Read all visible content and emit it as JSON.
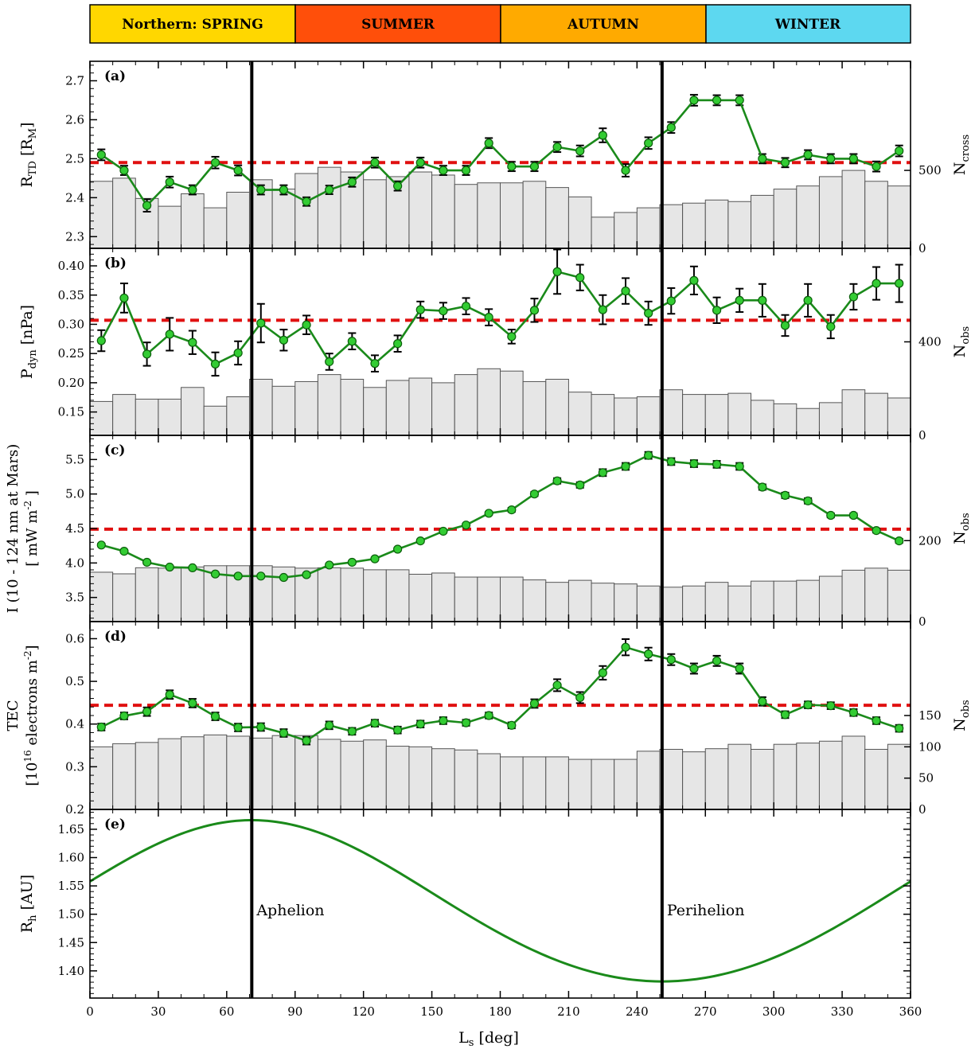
{
  "seasons": [
    {
      "label": "Northern: SPRING",
      "color": "#ffd700"
    },
    {
      "label": "SUMMER",
      "color": "#ff4f0a"
    },
    {
      "label": "AUTUMN",
      "color": "#ffaa00"
    },
    {
      "label": "WINTER",
      "color": "#5dd8f0"
    }
  ],
  "colors": {
    "line": "#1a8a1a",
    "marker": "#33cc33",
    "mean_line": "#e01010",
    "hist_fill": "#e6e6e6",
    "hist_edge": "#555555"
  },
  "xaxis": {
    "label": "L",
    "label_sub": "s",
    "label_tail": " [deg]",
    "ticks": [
      0,
      30,
      60,
      90,
      120,
      150,
      180,
      210,
      240,
      270,
      300,
      330,
      360
    ],
    "range": [
      0,
      360
    ]
  },
  "events": [
    {
      "label": "Aphelion",
      "ls": 71
    },
    {
      "label": "Perihelion",
      "ls": 251
    }
  ],
  "chart_data": [
    {
      "type": "line",
      "panel": "(a)",
      "ylabel": {
        "main": "R",
        "sub": "TD",
        "tail": " [R",
        "unit_sub": "M",
        "end": "]"
      },
      "ylim": [
        2.27,
        2.75
      ],
      "yticks": [
        2.3,
        2.4,
        2.5,
        2.6,
        2.7
      ],
      "mean": 2.49,
      "series": {
        "x": [
          5,
          15,
          25,
          35,
          45,
          55,
          65,
          75,
          85,
          95,
          105,
          115,
          125,
          135,
          145,
          155,
          165,
          175,
          185,
          195,
          205,
          215,
          225,
          235,
          245,
          255,
          265,
          275,
          285,
          295,
          305,
          315,
          325,
          335,
          345,
          355
        ],
        "y": [
          2.51,
          2.47,
          2.38,
          2.44,
          2.42,
          2.49,
          2.47,
          2.42,
          2.42,
          2.39,
          2.42,
          2.44,
          2.49,
          2.43,
          2.49,
          2.47,
          2.47,
          2.54,
          2.48,
          2.48,
          2.53,
          2.52,
          2.56,
          2.47,
          2.54,
          2.58,
          2.65,
          2.65,
          2.65,
          2.5,
          2.49,
          2.51,
          2.5,
          2.5,
          2.48,
          2.52
        ],
        "err": [
          0.014,
          0.012,
          0.016,
          0.014,
          0.012,
          0.015,
          0.013,
          0.012,
          0.012,
          0.011,
          0.011,
          0.012,
          0.013,
          0.012,
          0.013,
          0.012,
          0.012,
          0.013,
          0.012,
          0.012,
          0.013,
          0.014,
          0.018,
          0.016,
          0.015,
          0.014,
          0.014,
          0.013,
          0.013,
          0.012,
          0.012,
          0.012,
          0.012,
          0.012,
          0.013,
          0.014
        ]
      },
      "hist": {
        "ylabel": {
          "main": "N",
          "sub": "cross"
        },
        "ylim": [
          0,
          1200
        ],
        "yticks": [
          0,
          500
        ],
        "counts": [
          430,
          450,
          320,
          270,
          350,
          260,
          360,
          440,
          380,
          480,
          520,
          490,
          440,
          460,
          490,
          470,
          410,
          420,
          420,
          430,
          390,
          330,
          200,
          230,
          260,
          280,
          290,
          310,
          300,
          340,
          380,
          400,
          460,
          500,
          430,
          400
        ]
      }
    },
    {
      "type": "line",
      "panel": "(b)",
      "ylabel": {
        "main": "P",
        "sub": "dyn",
        "tail": " [nPa]",
        "unit_sub": "",
        "end": ""
      },
      "ylim": [
        0.11,
        0.43
      ],
      "yticks": [
        0.15,
        0.2,
        0.25,
        0.3,
        0.35,
        0.4
      ],
      "mean": 0.307,
      "series": {
        "x": [
          5,
          15,
          25,
          35,
          45,
          55,
          65,
          75,
          85,
          95,
          105,
          115,
          125,
          135,
          145,
          155,
          165,
          175,
          185,
          195,
          205,
          215,
          225,
          235,
          245,
          255,
          265,
          275,
          285,
          295,
          305,
          315,
          325,
          335,
          345,
          355
        ],
        "y": [
          0.272,
          0.345,
          0.249,
          0.283,
          0.269,
          0.232,
          0.251,
          0.302,
          0.273,
          0.299,
          0.236,
          0.271,
          0.233,
          0.267,
          0.325,
          0.323,
          0.331,
          0.312,
          0.279,
          0.324,
          0.39,
          0.38,
          0.325,
          0.357,
          0.319,
          0.34,
          0.375,
          0.324,
          0.341,
          0.341,
          0.298,
          0.341,
          0.296,
          0.347,
          0.37,
          0.37
        ],
        "err": [
          0.018,
          0.025,
          0.02,
          0.028,
          0.02,
          0.02,
          0.02,
          0.033,
          0.018,
          0.016,
          0.014,
          0.014,
          0.014,
          0.014,
          0.014,
          0.014,
          0.014,
          0.014,
          0.012,
          0.02,
          0.038,
          0.022,
          0.025,
          0.022,
          0.02,
          0.022,
          0.024,
          0.022,
          0.02,
          0.028,
          0.018,
          0.028,
          0.02,
          0.022,
          0.028,
          0.032
        ]
      },
      "hist": {
        "ylabel": {
          "main": "N",
          "sub": "obs"
        },
        "ylim": [
          0,
          800
        ],
        "yticks": [
          0,
          400
        ],
        "counts": [
          145,
          175,
          155,
          155,
          205,
          125,
          165,
          240,
          210,
          230,
          260,
          240,
          205,
          235,
          245,
          225,
          260,
          285,
          275,
          230,
          240,
          185,
          175,
          160,
          165,
          195,
          175,
          175,
          180,
          150,
          135,
          115,
          140,
          195,
          180,
          160
        ]
      }
    },
    {
      "type": "line",
      "panel": "(c)",
      "ylabel": {
        "main": "I (10 - 124 nm at Mars)",
        "line2": "[ mW m",
        "line2_sup": "-2",
        "line2_end": " ]"
      },
      "ylim": [
        3.15,
        5.85
      ],
      "yticks": [
        3.5,
        4.0,
        4.5,
        5.0,
        5.5
      ],
      "mean": 4.49,
      "series": {
        "x": [
          5,
          15,
          25,
          35,
          45,
          55,
          65,
          75,
          85,
          95,
          105,
          115,
          125,
          135,
          145,
          155,
          165,
          175,
          185,
          195,
          205,
          215,
          225,
          235,
          245,
          255,
          265,
          275,
          285,
          295,
          305,
          315,
          325,
          335,
          345,
          355
        ],
        "y": [
          4.26,
          4.17,
          4.01,
          3.94,
          3.93,
          3.84,
          3.81,
          3.81,
          3.79,
          3.83,
          3.97,
          4.01,
          4.06,
          4.2,
          4.32,
          4.46,
          4.55,
          4.72,
          4.77,
          5.0,
          5.19,
          5.13,
          5.31,
          5.4,
          5.56,
          5.47,
          5.44,
          5.43,
          5.4,
          5.1,
          4.98,
          4.9,
          4.69,
          4.69,
          4.47,
          4.32
        ],
        "err": [
          0.02,
          0.02,
          0.02,
          0.02,
          0.02,
          0.02,
          0.02,
          0.02,
          0.02,
          0.02,
          0.02,
          0.02,
          0.02,
          0.02,
          0.02,
          0.02,
          0.02,
          0.02,
          0.03,
          0.03,
          0.04,
          0.04,
          0.05,
          0.05,
          0.05,
          0.05,
          0.05,
          0.05,
          0.05,
          0.04,
          0.04,
          0.04,
          0.03,
          0.03,
          0.03,
          0.03
        ]
      },
      "hist": {
        "ylabel": {
          "main": "N",
          "sub": "obs"
        },
        "ylim": [
          0,
          460
        ],
        "yticks": [
          0,
          200
        ],
        "counts": [
          122,
          118,
          133,
          132,
          135,
          138,
          138,
          138,
          135,
          132,
          133,
          132,
          128,
          128,
          117,
          120,
          110,
          110,
          110,
          103,
          97,
          102,
          95,
          93,
          88,
          85,
          88,
          97,
          88,
          100,
          100,
          102,
          112,
          127,
          132,
          127
        ]
      }
    },
    {
      "type": "line",
      "panel": "(d)",
      "ylabel": {
        "main": "TEC",
        "line2": "[10",
        "line2_sup": "16",
        "line2_end": " electrons m",
        "line2_sup2": "-2",
        "line2_close": "]"
      },
      "ylim": [
        0.2,
        0.64
      ],
      "yticks": [
        0.2,
        0.3,
        0.4,
        0.5,
        0.6
      ],
      "mean": 0.444,
      "series": {
        "x": [
          5,
          15,
          25,
          35,
          45,
          55,
          65,
          75,
          85,
          95,
          105,
          115,
          125,
          135,
          145,
          155,
          165,
          175,
          185,
          195,
          205,
          215,
          225,
          235,
          245,
          255,
          265,
          275,
          285,
          295,
          305,
          315,
          325,
          335,
          345,
          355
        ],
        "y": [
          0.393,
          0.419,
          0.429,
          0.469,
          0.449,
          0.418,
          0.392,
          0.393,
          0.379,
          0.361,
          0.397,
          0.383,
          0.402,
          0.386,
          0.4,
          0.408,
          0.403,
          0.42,
          0.397,
          0.448,
          0.491,
          0.462,
          0.52,
          0.58,
          0.564,
          0.551,
          0.53,
          0.548,
          0.53,
          0.453,
          0.422,
          0.445,
          0.443,
          0.427,
          0.408,
          0.39
        ],
        "err": [
          0.008,
          0.008,
          0.01,
          0.01,
          0.01,
          0.009,
          0.009,
          0.009,
          0.009,
          0.009,
          0.009,
          0.008,
          0.008,
          0.008,
          0.008,
          0.008,
          0.007,
          0.007,
          0.007,
          0.01,
          0.014,
          0.013,
          0.016,
          0.019,
          0.015,
          0.013,
          0.012,
          0.012,
          0.012,
          0.01,
          0.008,
          0.008,
          0.008,
          0.008,
          0.008,
          0.008
        ]
      },
      "hist": {
        "ylabel": {
          "main": "N",
          "sub": "obs"
        },
        "ylim": [
          0,
          300
        ],
        "yticks": [
          0,
          50,
          100,
          150
        ],
        "counts": [
          100,
          105,
          107,
          113,
          116,
          119,
          117,
          114,
          118,
          118,
          112,
          109,
          111,
          101,
          100,
          97,
          95,
          89,
          84,
          84,
          84,
          80,
          80,
          80,
          93,
          96,
          92,
          97,
          104,
          96,
          104,
          106,
          109,
          117,
          96,
          104
        ]
      }
    },
    {
      "type": "line",
      "panel": "(e)",
      "ylabel": {
        "main": "R",
        "sub": "h",
        "tail": " [AU]"
      },
      "ylim": [
        1.352,
        1.685
      ],
      "yticks": [
        1.35,
        1.4,
        1.45,
        1.5,
        1.55,
        1.6,
        1.65
      ],
      "curve": {
        "aphelion_ls": 71,
        "mean_au": 1.5237,
        "eccentricity": 0.0934
      }
    }
  ]
}
